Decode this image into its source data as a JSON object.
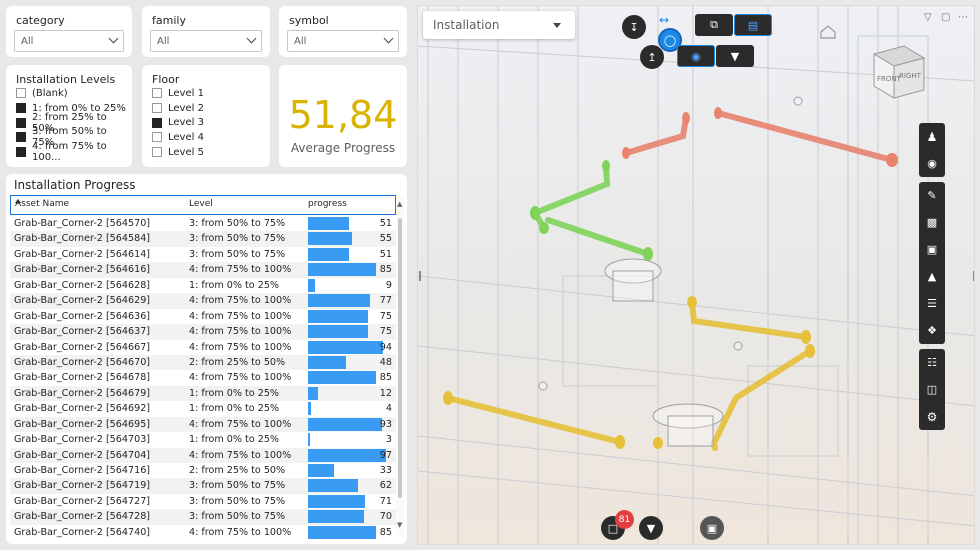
{
  "slicers": {
    "category": {
      "title": "category",
      "value": "All"
    },
    "family": {
      "title": "family",
      "value": "All"
    },
    "symbol": {
      "title": "symbol",
      "value": "All"
    }
  },
  "installation_levels": {
    "title": "Installation Levels",
    "items": [
      {
        "label": "(Blank)",
        "checked": false
      },
      {
        "label": "1: from 0% to 25%",
        "checked": true
      },
      {
        "label": "2: from 25% to 50%",
        "checked": true
      },
      {
        "label": "3: from 50% to 75%",
        "checked": true
      },
      {
        "label": "4: from 75% to 100...",
        "checked": true
      }
    ]
  },
  "floor": {
    "title": "Floor",
    "items": [
      {
        "label": "Level 1",
        "checked": false
      },
      {
        "label": "Level 2",
        "checked": false
      },
      {
        "label": "Level 3",
        "checked": true
      },
      {
        "label": "Level 4",
        "checked": false
      },
      {
        "label": "Level 5",
        "checked": false
      }
    ]
  },
  "kpi": {
    "value": "51,84",
    "label": "Average Progress",
    "color": "#d9b300"
  },
  "table": {
    "title": "Installation Progress",
    "columns": [
      "Asset Name",
      "Level",
      "progress"
    ],
    "bar_color": "#3a9bf5",
    "rows": [
      {
        "name": "Grab-Bar_Corner-2 [564570]",
        "level": "3: from 50% to 75%",
        "progress": 51
      },
      {
        "name": "Grab-Bar_Corner-2 [564584]",
        "level": "3: from 50% to 75%",
        "progress": 55
      },
      {
        "name": "Grab-Bar_Corner-2 [564614]",
        "level": "3: from 50% to 75%",
        "progress": 51
      },
      {
        "name": "Grab-Bar_Corner-2 [564616]",
        "level": "4: from 75% to 100%",
        "progress": 85
      },
      {
        "name": "Grab-Bar_Corner-2 [564628]",
        "level": "1: from 0% to 25%",
        "progress": 9
      },
      {
        "name": "Grab-Bar_Corner-2 [564629]",
        "level": "4: from 75% to 100%",
        "progress": 77
      },
      {
        "name": "Grab-Bar_Corner-2 [564636]",
        "level": "4: from 75% to 100%",
        "progress": 75
      },
      {
        "name": "Grab-Bar_Corner-2 [564637]",
        "level": "4: from 75% to 100%",
        "progress": 75
      },
      {
        "name": "Grab-Bar_Corner-2 [564667]",
        "level": "4: from 75% to 100%",
        "progress": 94
      },
      {
        "name": "Grab-Bar_Corner-2 [564670]",
        "level": "2: from 25% to 50%",
        "progress": 48
      },
      {
        "name": "Grab-Bar_Corner-2 [564678]",
        "level": "4: from 75% to 100%",
        "progress": 85
      },
      {
        "name": "Grab-Bar_Corner-2 [564679]",
        "level": "1: from 0% to 25%",
        "progress": 12
      },
      {
        "name": "Grab-Bar_Corner-2 [564692]",
        "level": "1: from 0% to 25%",
        "progress": 4
      },
      {
        "name": "Grab-Bar_Corner-2 [564695]",
        "level": "4: from 75% to 100%",
        "progress": 93
      },
      {
        "name": "Grab-Bar_Corner-2 [564703]",
        "level": "1: from 0% to 25%",
        "progress": 3
      },
      {
        "name": "Grab-Bar_Corner-2 [564704]",
        "level": "4: from 75% to 100%",
        "progress": 97
      },
      {
        "name": "Grab-Bar_Corner-2 [564716]",
        "level": "2: from 25% to 50%",
        "progress": 33
      },
      {
        "name": "Grab-Bar_Corner-2 [564719]",
        "level": "3: from 50% to 75%",
        "progress": 62
      },
      {
        "name": "Grab-Bar_Corner-2 [564727]",
        "level": "3: from 50% to 75%",
        "progress": 71
      },
      {
        "name": "Grab-Bar_Corner-2 [564728]",
        "level": "3: from 50% to 75%",
        "progress": 70
      },
      {
        "name": "Grab-Bar_Corner-2 [564740]",
        "level": "4: from 75% to 100%",
        "progress": 85
      }
    ]
  },
  "viewer": {
    "view_selector": "Installation",
    "selection_count": "81",
    "cube_labels": {
      "front": "FRONT",
      "right": "RIGHT"
    },
    "toolbar_icons": [
      "person-icon",
      "camera-icon",
      "measure-icon",
      "section-box-icon",
      "folder-icon",
      "explode-icon",
      "layers-icon",
      "model-tree-icon",
      "hierarchy-icon",
      "properties-icon",
      "settings-icon"
    ],
    "colors": {
      "red": "#e8836e",
      "green": "#7fd35a",
      "yellow": "#e6c03a",
      "toolbar": "#2b2b2b",
      "accent": "#3a9bf5"
    }
  }
}
